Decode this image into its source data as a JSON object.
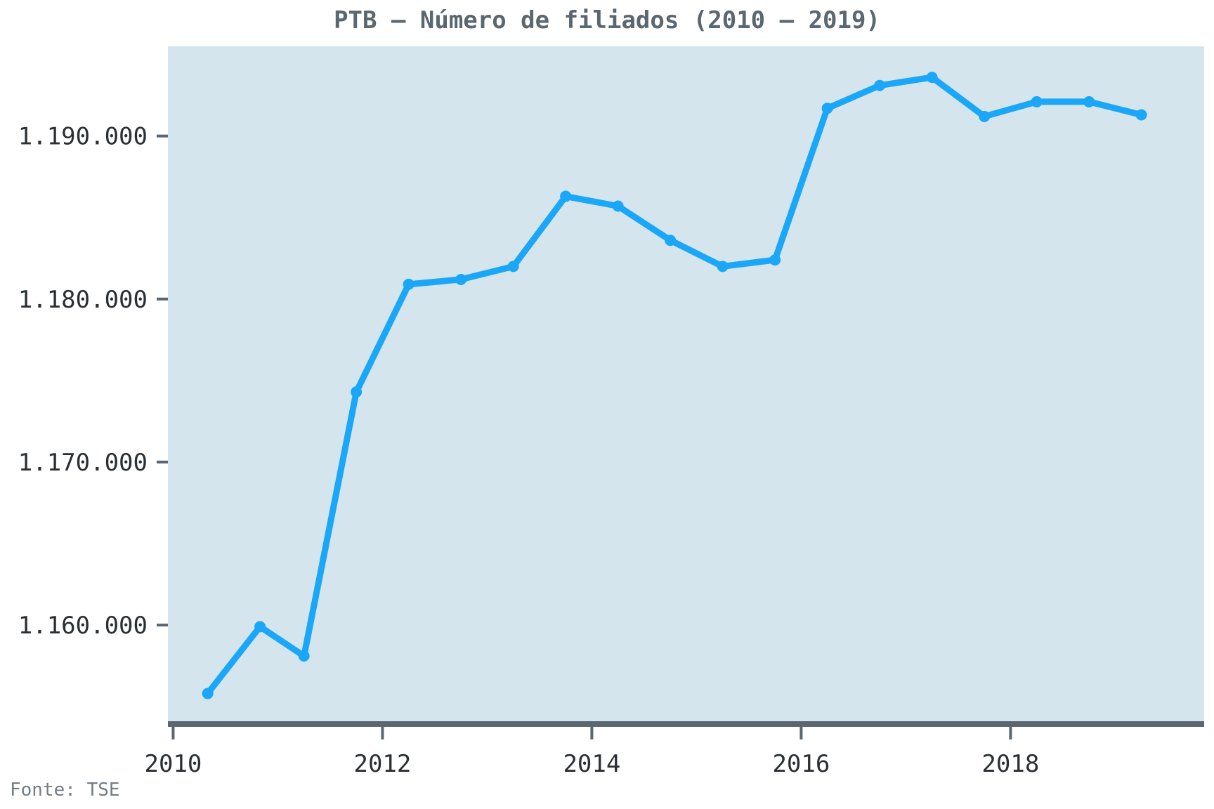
{
  "chart_data": {
    "type": "line",
    "title": "PTB – Número de filiados (2010 – 2019)",
    "source": "Fonte: TSE",
    "xlabel": "",
    "ylabel": "",
    "xlim": [
      2009.95,
      2019.85
    ],
    "ylim": [
      1154100,
      1195500
    ],
    "x_ticks": [
      2010,
      2012,
      2014,
      2016,
      2018
    ],
    "x_tick_labels": [
      "2010",
      "2012",
      "2014",
      "2016",
      "2018"
    ],
    "y_ticks": [
      1160000,
      1170000,
      1180000,
      1190000
    ],
    "y_tick_labels": [
      "1.160.000",
      "1.170.000",
      "1.180.000",
      "1.190.000"
    ],
    "grid": false,
    "legend": "none",
    "colors": {
      "line": "#1ba7f7",
      "plot_background": "#d5e5ed",
      "axis": "#5b6770"
    },
    "series": [
      {
        "name": "Número de filiados",
        "x": [
          2010.33,
          2010.83,
          2011.25,
          2011.75,
          2012.25,
          2012.75,
          2013.25,
          2013.75,
          2014.25,
          2014.75,
          2015.25,
          2015.75,
          2016.25,
          2016.75,
          2017.25,
          2017.75,
          2018.25,
          2018.75,
          2019.25
        ],
        "values": [
          1155800,
          1159900,
          1158100,
          1174300,
          1180900,
          1181200,
          1182000,
          1186300,
          1185700,
          1183600,
          1182000,
          1182400,
          1191700,
          1193100,
          1193600,
          1191200,
          1192100,
          1192100,
          1191300
        ]
      }
    ]
  }
}
